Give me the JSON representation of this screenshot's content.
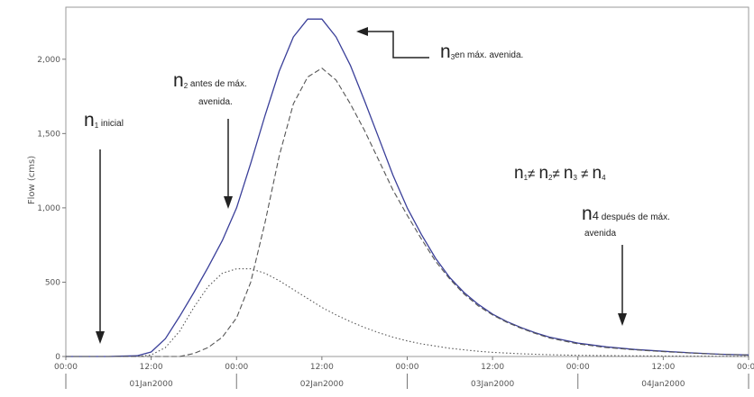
{
  "chart_data": {
    "type": "line",
    "ylabel": "Flow (cms)",
    "y_ticks": [
      "0",
      "500",
      "1,000",
      "1,500",
      "2,000"
    ],
    "y_tick_values": [
      0,
      500,
      1000,
      1500,
      2000
    ],
    "x_ticks": [
      "00:00",
      "12:00",
      "00:00",
      "12:00",
      "00:00",
      "12:00",
      "00:00",
      "12:00",
      "00:00"
    ],
    "x_tick_hours": [
      0,
      12,
      24,
      36,
      48,
      60,
      72,
      84,
      96
    ],
    "date_labels": [
      "01Jan2000",
      "02Jan2000",
      "03Jan2000",
      "04Jan2000"
    ],
    "ylim": [
      0,
      2350
    ],
    "xlim_hours": [
      0,
      96
    ],
    "series": [
      {
        "style": "solid",
        "color": "#3a3f99",
        "x": [
          0,
          6,
          10,
          12,
          14,
          16,
          18,
          20,
          22,
          24,
          26,
          28,
          30,
          32,
          34,
          36,
          38,
          40,
          42,
          44,
          46,
          48,
          50,
          52,
          54,
          56,
          58,
          60,
          62,
          64,
          66,
          68,
          70,
          72,
          76,
          80,
          84,
          88,
          92,
          96
        ],
        "y": [
          0,
          0,
          5,
          30,
          120,
          270,
          430,
          600,
          780,
          1000,
          1300,
          1620,
          1920,
          2150,
          2270,
          2270,
          2150,
          1960,
          1720,
          1470,
          1220,
          1000,
          820,
          660,
          530,
          430,
          350,
          285,
          235,
          195,
          160,
          130,
          110,
          90,
          65,
          47,
          35,
          24,
          15,
          10
        ]
      },
      {
        "style": "dashed",
        "color": "#555555",
        "x": [
          0,
          16,
          18,
          20,
          22,
          24,
          26,
          28,
          30,
          32,
          34,
          36,
          38,
          40,
          42,
          44,
          46,
          48,
          50,
          52,
          54,
          56,
          58,
          60,
          62,
          64,
          66,
          68,
          70,
          72,
          76,
          80,
          84,
          88,
          92,
          96
        ],
        "y": [
          0,
          0,
          20,
          60,
          130,
          260,
          500,
          900,
          1350,
          1700,
          1880,
          1940,
          1860,
          1700,
          1520,
          1320,
          1120,
          950,
          790,
          640,
          520,
          420,
          340,
          280,
          230,
          190,
          155,
          125,
          105,
          85,
          60,
          45,
          33,
          23,
          15,
          10
        ]
      },
      {
        "style": "dotted",
        "color": "#555555",
        "x": [
          0,
          10,
          12,
          14,
          16,
          18,
          20,
          22,
          24,
          26,
          28,
          30,
          32,
          34,
          36,
          38,
          40,
          42,
          44,
          46,
          48,
          50,
          52,
          54,
          56,
          58,
          60,
          64,
          68,
          72,
          80,
          88,
          96
        ],
        "y": [
          0,
          0,
          10,
          60,
          170,
          330,
          470,
          560,
          590,
          590,
          560,
          510,
          450,
          390,
          330,
          280,
          235,
          195,
          160,
          130,
          105,
          85,
          70,
          55,
          45,
          35,
          28,
          18,
          12,
          8,
          4,
          2,
          1
        ]
      }
    ],
    "annotations": [
      {
        "sym": "n",
        "sub": "1",
        "text": " inicial"
      },
      {
        "sym": "n",
        "sub": "2",
        "text": " antes de máx.",
        "line2": "avenida."
      },
      {
        "sym": "n",
        "sub": "3",
        "text": "en máx. avenida."
      },
      {
        "sym": "n",
        "sub": "4",
        "text": " después de máx.",
        "line2": "avenida"
      }
    ],
    "inequality": [
      "n",
      "1",
      "≠ ",
      "n",
      "2",
      "≠ ",
      "n",
      "3",
      " ≠ ",
      "n",
      "4"
    ]
  }
}
